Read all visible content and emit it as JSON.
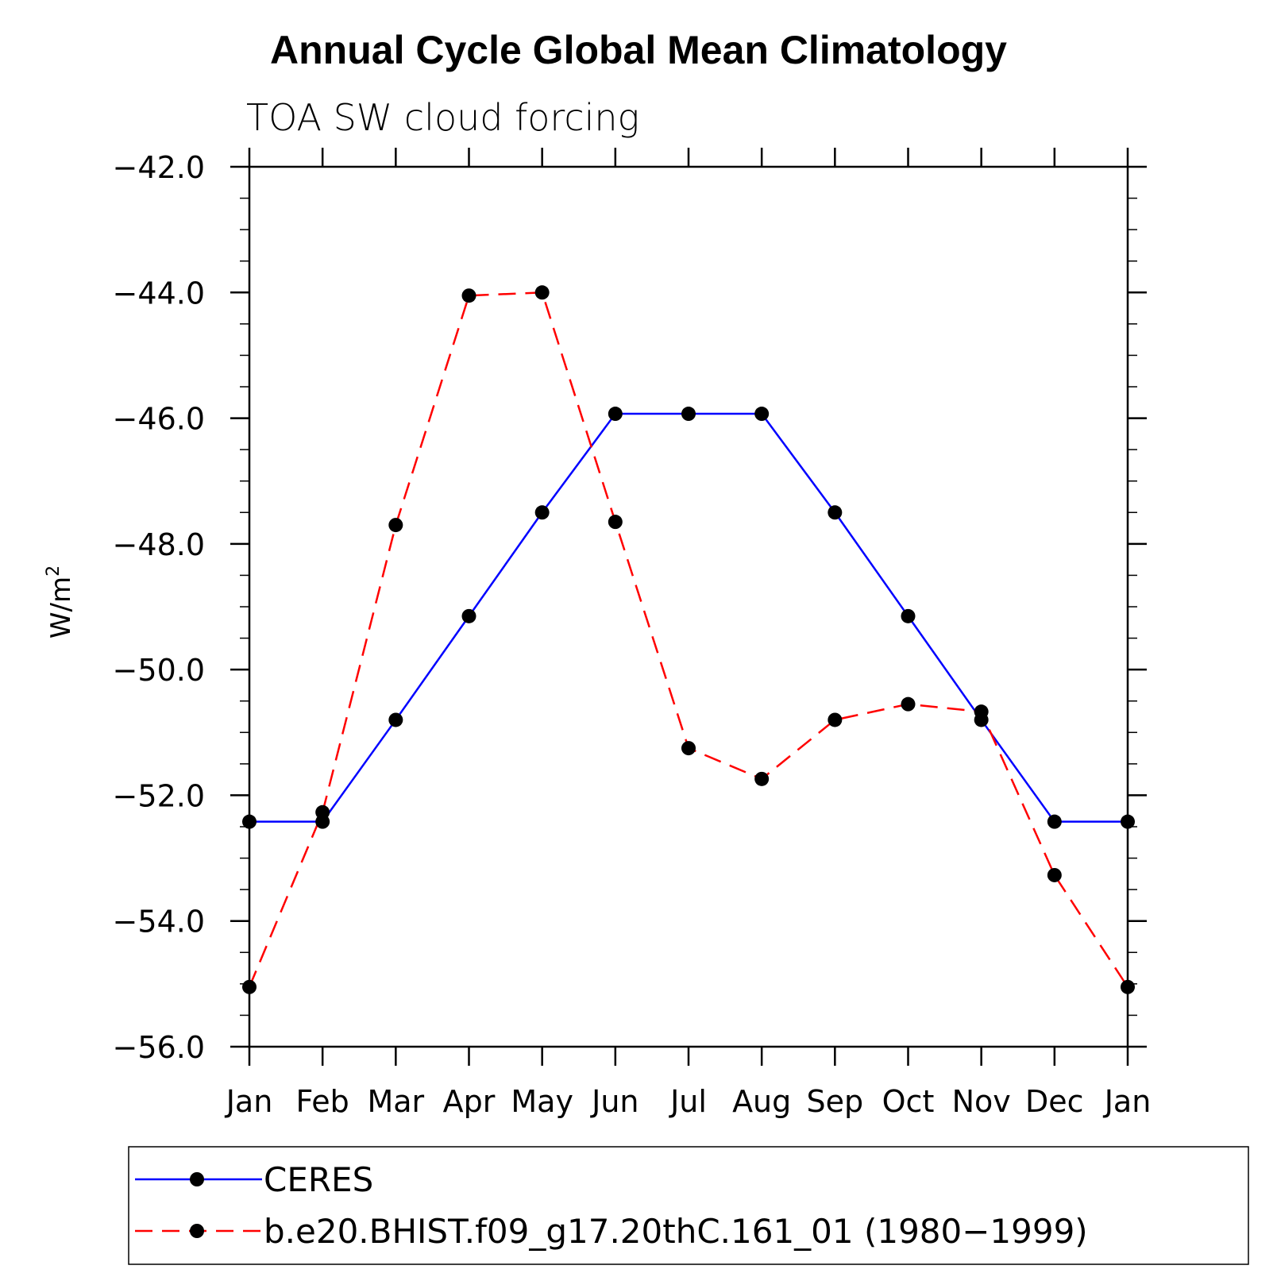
{
  "chart_data": {
    "type": "line",
    "title": "Annual Cycle Global Mean Climatology",
    "subtitle": "TOA SW cloud forcing",
    "ylabel": "W/m",
    "ylabel_superscript": "2",
    "categories": [
      "Jan",
      "Feb",
      "Mar",
      "Apr",
      "May",
      "Jun",
      "Jul",
      "Aug",
      "Sep",
      "Oct",
      "Nov",
      "Dec",
      "Jan"
    ],
    "ylim": [
      -56.0,
      -42.0
    ],
    "yticks": [
      -42.0,
      -44.0,
      -46.0,
      -48.0,
      -50.0,
      -52.0,
      -54.0,
      -56.0
    ],
    "ytick_labels": [
      "−42.0",
      "−44.0",
      "−46.0",
      "−48.0",
      "−50.0",
      "−52.0",
      "−54.0",
      "−56.0"
    ],
    "series": [
      {
        "name": "CERES",
        "color": "#0000ff",
        "dash": "solid",
        "values": [
          -52.42,
          -52.42,
          -50.8,
          -49.15,
          -47.5,
          -45.93,
          -45.93,
          -45.93,
          -47.5,
          -49.15,
          -50.8,
          -52.42,
          -52.42
        ]
      },
      {
        "name": "b.e20.BHIST.f09_g17.20thC.161_01 (1980−1999)",
        "color": "#ff0000",
        "dash": "dashed",
        "values": [
          -55.05,
          -52.27,
          -47.7,
          -44.05,
          -44.0,
          -47.65,
          -51.25,
          -51.74,
          -50.8,
          -50.55,
          -50.67,
          -53.27,
          -55.05
        ]
      }
    ],
    "grid": false,
    "legend_position": "bottom"
  }
}
